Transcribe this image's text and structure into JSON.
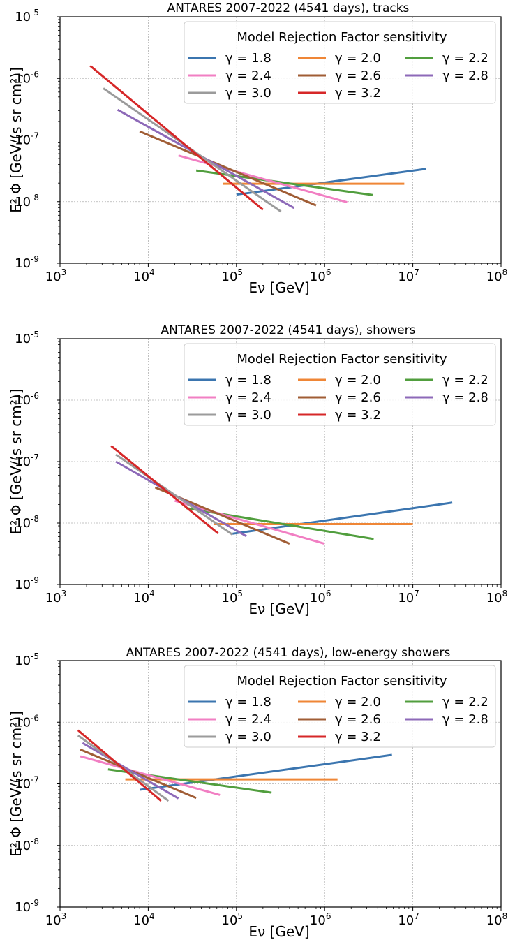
{
  "figure": {
    "ylabel": "E² Φ [GeV/(s sr cm²)]",
    "xlabel": "Eν [GeV]",
    "legend_title": "Model Rejection Factor sensitivity",
    "legend_placement": "top-right"
  },
  "chart_data": [
    {
      "type": "line",
      "title": "ANTARES 2007-2022 (4541 days), tracks",
      "xlabel": "Eν [GeV]",
      "ylabel": "E² Φ [GeV/(s sr cm²)]",
      "xscale": "log",
      "yscale": "log",
      "xlim": [
        1000,
        100000000
      ],
      "ylim": [
        1e-09,
        1e-05
      ],
      "grid": true,
      "legend": "top-right",
      "series": [
        {
          "name": "γ = 1.8",
          "color": "#3b75af",
          "x": [
            100000,
            14000000
          ],
          "y": [
            1.3e-08,
            3.4e-08
          ]
        },
        {
          "name": "γ = 2.0",
          "color": "#ef8636",
          "x": [
            70000,
            8000000
          ],
          "y": [
            1.95e-08,
            1.95e-08
          ]
        },
        {
          "name": "γ = 2.2",
          "color": "#519e3e",
          "x": [
            35000,
            3500000
          ],
          "y": [
            3.2e-08,
            1.28e-08
          ]
        },
        {
          "name": "γ = 2.4",
          "color": "#f17fc3",
          "x": [
            22000,
            1800000
          ],
          "y": [
            5.6e-08,
            9.8e-09
          ]
        },
        {
          "name": "γ = 2.6",
          "color": "#a05d35",
          "x": [
            8000,
            800000
          ],
          "y": [
            1.38e-07,
            8.7e-09
          ]
        },
        {
          "name": "γ = 2.8",
          "color": "#8d69b8",
          "x": [
            4500,
            450000
          ],
          "y": [
            3.1e-07,
            7.9e-09
          ]
        },
        {
          "name": "γ = 3.0",
          "color": "#9b9b9b",
          "x": [
            3100,
            320000
          ],
          "y": [
            6.9e-07,
            6.9e-09
          ]
        },
        {
          "name": "γ = 3.2",
          "color": "#d62728",
          "x": [
            2200,
            200000
          ],
          "y": [
            1.6e-06,
            7.4e-09
          ]
        }
      ]
    },
    {
      "type": "line",
      "title": "ANTARES 2007-2022 (4541 days), showers",
      "xlabel": "Eν [GeV]",
      "ylabel": "E² Φ [GeV/(s sr cm²)]",
      "xscale": "log",
      "yscale": "log",
      "xlim": [
        1000,
        100000000
      ],
      "ylim": [
        1e-09,
        1e-05
      ],
      "grid": true,
      "legend": "top-right",
      "series": [
        {
          "name": "γ = 1.8",
          "color": "#3b75af",
          "x": [
            90000,
            28000000
          ],
          "y": [
            6.7e-09,
            2.15e-08
          ]
        },
        {
          "name": "γ = 2.0",
          "color": "#ef8636",
          "x": [
            55000,
            10000000
          ],
          "y": [
            9.6e-09,
            9.6e-09
          ]
        },
        {
          "name": "γ = 2.2",
          "color": "#519e3e",
          "x": [
            27000,
            3600000
          ],
          "y": [
            1.75e-08,
            5.5e-09
          ]
        },
        {
          "name": "γ = 2.4",
          "color": "#f17fc3",
          "x": [
            20000,
            1000000
          ],
          "y": [
            2.3e-08,
            4.6e-09
          ]
        },
        {
          "name": "γ = 2.6",
          "color": "#a05d35",
          "x": [
            12000,
            400000
          ],
          "y": [
            3.8e-08,
            4.6e-09
          ]
        },
        {
          "name": "γ = 2.8",
          "color": "#8d69b8",
          "x": [
            4300,
            130000
          ],
          "y": [
            1e-07,
            6.1e-09
          ]
        },
        {
          "name": "γ = 3.0",
          "color": "#9b9b9b",
          "x": [
            4300,
            90000
          ],
          "y": [
            1.3e-07,
            6.5e-09
          ]
        },
        {
          "name": "γ = 3.2",
          "color": "#d62728",
          "x": [
            3800,
            62000
          ],
          "y": [
            1.8e-07,
            6.8e-09
          ]
        }
      ]
    },
    {
      "type": "line",
      "title": "ANTARES 2007-2022 (4541 days), low-energy showers",
      "xlabel": "Eν [GeV]",
      "ylabel": "E² Φ [GeV/(s sr cm²)]",
      "xscale": "log",
      "yscale": "log",
      "xlim": [
        1000,
        100000000
      ],
      "ylim": [
        1e-09,
        1e-05
      ],
      "grid": true,
      "legend": "top-right",
      "series": [
        {
          "name": "γ = 1.8",
          "color": "#3b75af",
          "x": [
            8000,
            5800000
          ],
          "y": [
            8e-08,
            2.95e-07
          ]
        },
        {
          "name": "γ = 2.0",
          "color": "#ef8636",
          "x": [
            5500,
            1400000
          ],
          "y": [
            1.18e-07,
            1.18e-07
          ]
        },
        {
          "name": "γ = 2.2",
          "color": "#519e3e",
          "x": [
            3500,
            250000
          ],
          "y": [
            1.72e-07,
            7.2e-08
          ]
        },
        {
          "name": "γ = 2.4",
          "color": "#f17fc3",
          "x": [
            1700,
            65000
          ],
          "y": [
            2.8e-07,
            6.6e-08
          ]
        },
        {
          "name": "γ = 2.6",
          "color": "#a05d35",
          "x": [
            1700,
            35000
          ],
          "y": [
            3.6e-07,
            5.9e-08
          ]
        },
        {
          "name": "γ = 2.8",
          "color": "#8d69b8",
          "x": [
            1800,
            22000
          ],
          "y": [
            4.6e-07,
            5.8e-08
          ]
        },
        {
          "name": "γ = 3.0",
          "color": "#9b9b9b",
          "x": [
            1600,
            17000
          ],
          "y": [
            6.1e-07,
            5.3e-08
          ]
        },
        {
          "name": "γ = 3.2",
          "color": "#d62728",
          "x": [
            1600,
            14000
          ],
          "y": [
            7.4e-07,
            5.3e-08
          ]
        }
      ]
    }
  ]
}
